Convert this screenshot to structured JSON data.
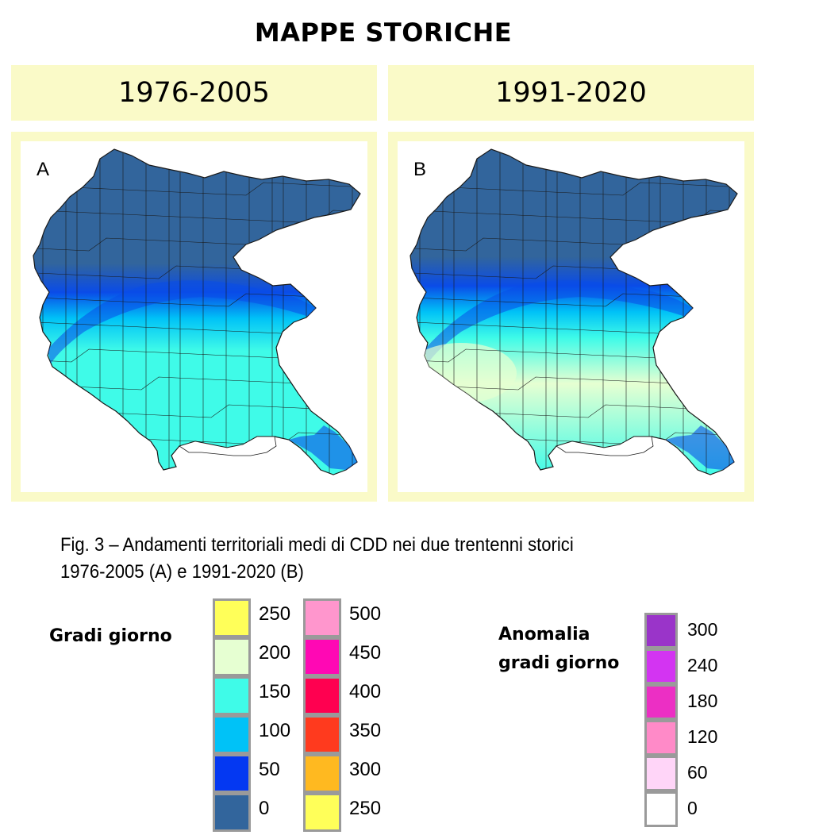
{
  "title": "MAPPE STORICHE",
  "panels": [
    {
      "period": "1976-2005",
      "letter": "A"
    },
    {
      "period": "1991-2020",
      "letter": "B"
    }
  ],
  "caption": {
    "line1": "Fig. 3  – Andamenti territoriali medi di CDD nei due trentenni storici",
    "line2": "1976-2005 (A) e 1991-2020 (B)"
  },
  "legend_gradi_giorno": {
    "title": "Gradi giorno",
    "column1": [
      {
        "label": "250",
        "color": "#ffff59"
      },
      {
        "label": "200",
        "color": "#e6ffd2"
      },
      {
        "label": "150",
        "color": "#3ffbe8"
      },
      {
        "label": "100",
        "color": "#00c2f7"
      },
      {
        "label": "50",
        "color": "#0438f2"
      },
      {
        "label": "0",
        "color": "#32659c"
      }
    ],
    "column2": [
      {
        "label": "500",
        "color": "#ff96cd"
      },
      {
        "label": "450",
        "color": "#ff08b4"
      },
      {
        "label": "400",
        "color": "#ff0050"
      },
      {
        "label": "350",
        "color": "#ff3a1e"
      },
      {
        "label": "300",
        "color": "#ffb920"
      },
      {
        "label": "250",
        "color": "#ffff59"
      }
    ]
  },
  "legend_anomalia": {
    "title_line1": "Anomalia",
    "title_line2": "gradi giorno",
    "items": [
      {
        "label": "300",
        "color": "#9a34c9"
      },
      {
        "label": "240",
        "color": "#d334f2"
      },
      {
        "label": "180",
        "color": "#ec2fc4"
      },
      {
        "label": "120",
        "color": "#ff8ac8"
      },
      {
        "label": "60",
        "color": "#ffd5f8"
      },
      {
        "label": "0",
        "color": "#ffffff"
      }
    ]
  },
  "map_colors": {
    "mountain": "#32659c",
    "transition": "#0a4ce8",
    "foothill": "#00c2f7",
    "plain": "#3ffbe8",
    "warm_plain": "#e6ffd2",
    "lagoon": "#ffffff",
    "borders": "#1a1a1a"
  }
}
